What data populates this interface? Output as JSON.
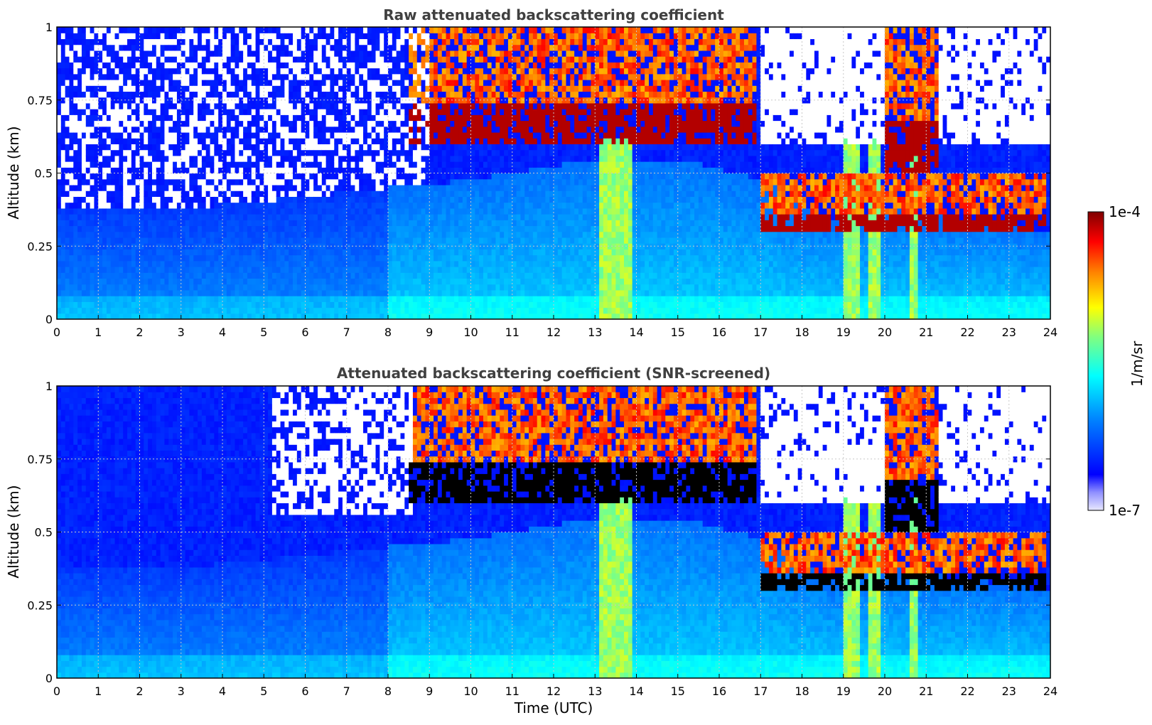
{
  "chart_data": [
    {
      "type": "heatmap",
      "title": "Raw attenuated backscattering coefficient",
      "xlabel": "",
      "ylabel": "Altitude (km)",
      "xlim": [
        0,
        24
      ],
      "ylim": [
        0,
        1
      ],
      "x_ticks": [
        "0",
        "1",
        "2",
        "3",
        "4",
        "5",
        "6",
        "7",
        "8",
        "9",
        "10",
        "11",
        "12",
        "13",
        "14",
        "15",
        "16",
        "17",
        "18",
        "19",
        "20",
        "21",
        "22",
        "23",
        "24"
      ],
      "y_ticks": [
        "0",
        "0.25",
        "0.5",
        "0.75",
        "1"
      ],
      "grid": true,
      "colorscale": "jet",
      "color_scale": "log",
      "screened": false
    },
    {
      "type": "heatmap",
      "title": "Attenuated backscattering coefficient (SNR-screened)",
      "xlabel": "Time (UTC)",
      "ylabel": "Altitude (km)",
      "xlim": [
        0,
        24
      ],
      "ylim": [
        0,
        1
      ],
      "x_ticks": [
        "0",
        "1",
        "2",
        "3",
        "4",
        "5",
        "6",
        "7",
        "8",
        "9",
        "10",
        "11",
        "12",
        "13",
        "14",
        "15",
        "16",
        "17",
        "18",
        "19",
        "20",
        "21",
        "22",
        "23",
        "24"
      ],
      "y_ticks": [
        "0",
        "0.25",
        "0.5",
        "0.75",
        "1"
      ],
      "grid": true,
      "colorscale": "jet",
      "color_scale": "log",
      "screened": true
    }
  ],
  "colorbar": {
    "label": "1/m/sr",
    "max_label": "1e-4",
    "min_label": "1e-7",
    "scale": "log",
    "range": [
      1e-07,
      0.0001
    ],
    "colors": [
      "#e8e8ff",
      "#0000ff",
      "#00ffff",
      "#ffff00",
      "#ff0000",
      "#800000"
    ]
  },
  "colors": {
    "title": "#404040",
    "grid": "#c8c8c8",
    "saturated": "#000000",
    "masked": "#ffffff"
  },
  "layer_structure": {
    "boundary_layer_top_km": [
      [
        0,
        0.38
      ],
      [
        3,
        0.38
      ],
      [
        6,
        0.42
      ],
      [
        8,
        0.45
      ],
      [
        9,
        0.46
      ],
      [
        11,
        0.5
      ],
      [
        13,
        0.55
      ],
      [
        15,
        0.55
      ],
      [
        17,
        0.48
      ],
      [
        18,
        0.4
      ],
      [
        19,
        0.33
      ],
      [
        20,
        0.38
      ],
      [
        21,
        0.36
      ],
      [
        22,
        0.34
      ],
      [
        23.9,
        0.3
      ]
    ],
    "cloud_layers": [
      {
        "start_utc": 8.5,
        "end_utc": 16.9,
        "base_km": 0.6,
        "top_km": 1.0
      },
      {
        "start_utc": 17.0,
        "end_utc": 23.9,
        "base_km": 0.3,
        "top_km": 0.5
      },
      {
        "start_utc": 20.0,
        "end_utc": 21.3,
        "base_km": 0.5,
        "top_km": 1.0
      }
    ],
    "precipitation_shafts_utc": [
      [
        13.1,
        13.9
      ],
      [
        19.0,
        19.35
      ],
      [
        19.6,
        19.95
      ],
      [
        20.6,
        20.8
      ]
    ]
  }
}
